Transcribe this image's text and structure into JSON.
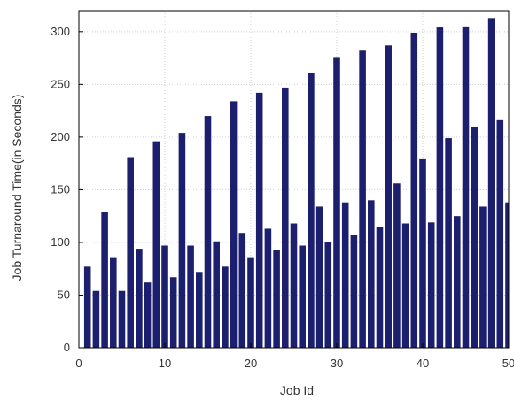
{
  "chart_data": {
    "type": "bar",
    "xlabel": "Job Id",
    "ylabel": "Job Turnaround Time(in Seconds)",
    "x": [
      1,
      2,
      3,
      4,
      5,
      6,
      7,
      8,
      9,
      10,
      11,
      12,
      13,
      14,
      15,
      16,
      17,
      18,
      19,
      20,
      21,
      22,
      23,
      24,
      25,
      26,
      27,
      28,
      29,
      30,
      31,
      32,
      33,
      34,
      35,
      36,
      37,
      38,
      39,
      40,
      41,
      42,
      43,
      44,
      45,
      46,
      47,
      48,
      49,
      50
    ],
    "values": [
      77,
      54,
      129,
      86,
      54,
      181,
      94,
      62,
      196,
      97,
      67,
      204,
      97,
      72,
      220,
      101,
      77,
      234,
      109,
      86,
      242,
      113,
      93,
      247,
      118,
      97,
      261,
      134,
      100,
      276,
      138,
      107,
      282,
      140,
      115,
      287,
      156,
      118,
      299,
      179,
      119,
      304,
      199,
      125,
      305,
      210,
      134,
      313,
      216,
      138
    ],
    "xlim": [
      0,
      50
    ],
    "ylim": [
      0,
      320
    ],
    "xticks": [
      "0",
      "10",
      "20",
      "30",
      "40",
      "50"
    ],
    "yticks": [
      "0",
      "50",
      "100",
      "150",
      "200",
      "250",
      "300"
    ],
    "grid": true,
    "bar_color": "#1c1f6e"
  }
}
